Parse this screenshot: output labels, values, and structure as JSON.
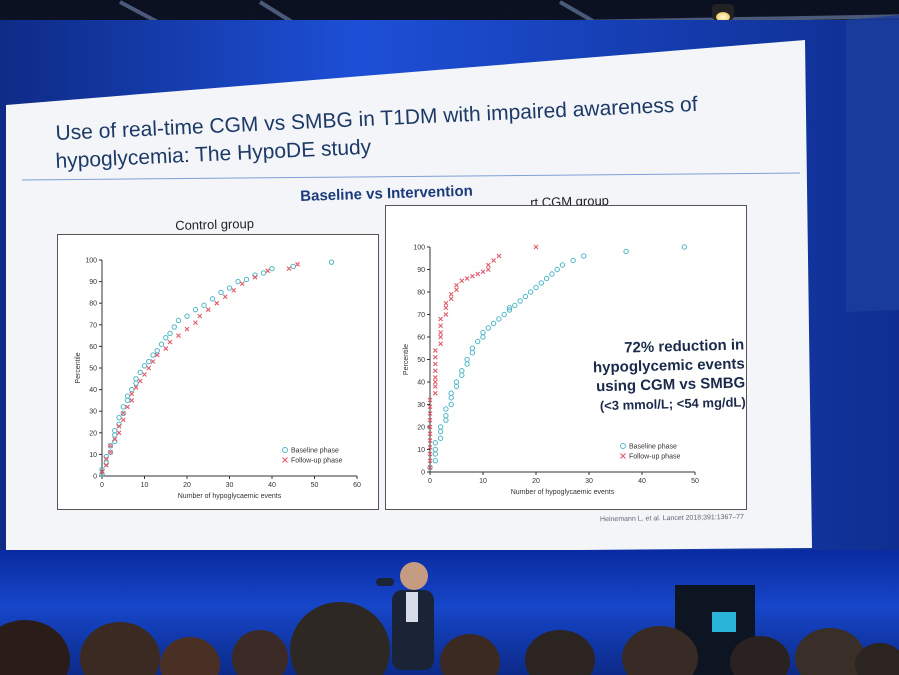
{
  "slide": {
    "title_line1": "Use of real-time CGM vs SMBG in T1DM with impaired awareness of",
    "title_line2": "hypoglycemia: The HypoDE study",
    "subtitle": "Baseline vs Intervention",
    "note_line1": "72% reduction in",
    "note_line2": "hypoglycemic events",
    "note_line3": "using CGM vs SMBG",
    "note_line4": "(<3 mmol/L; <54 mg/dL)",
    "citation": "Heinemann L, et al. Lancet 2018;391:1367–77",
    "accent_color": "#1c3b7a",
    "baseline_color": "#4fb6c6",
    "followup_color": "#e05a6a"
  },
  "chart_data": [
    {
      "type": "scatter",
      "title": "Control group",
      "xlabel": "Number of hypoglycaemic events",
      "ylabel": "Percentile",
      "xlim": [
        0,
        60
      ],
      "ylim": [
        0,
        100
      ],
      "xticks": [
        0,
        10,
        20,
        30,
        40,
        50,
        60
      ],
      "yticks": [
        0,
        10,
        20,
        30,
        40,
        50,
        60,
        70,
        80,
        90,
        100
      ],
      "legend": "bottom-right",
      "series": [
        {
          "name": "Baseline phase",
          "marker": "circle",
          "x": [
            0,
            0,
            1,
            1,
            2,
            2,
            3,
            3,
            3,
            4,
            4,
            5,
            5,
            6,
            6,
            7,
            8,
            8,
            9,
            10,
            11,
            12,
            13,
            14,
            15,
            16,
            17,
            18,
            20,
            22,
            24,
            26,
            28,
            30,
            32,
            34,
            36,
            38,
            40,
            45,
            54
          ],
          "y": [
            1,
            3,
            6,
            9,
            11,
            14,
            16,
            19,
            21,
            24,
            27,
            29,
            32,
            35,
            37,
            40,
            43,
            45,
            48,
            51,
            53,
            56,
            58,
            61,
            64,
            66,
            69,
            72,
            74,
            77,
            79,
            82,
            85,
            87,
            90,
            91,
            93,
            94,
            96,
            97,
            99
          ]
        },
        {
          "name": "Follow-up phase",
          "marker": "x",
          "x": [
            0,
            1,
            1,
            2,
            2,
            3,
            4,
            4,
            5,
            5,
            6,
            7,
            7,
            8,
            9,
            10,
            11,
            12,
            13,
            15,
            16,
            18,
            20,
            22,
            23,
            25,
            27,
            29,
            31,
            33,
            36,
            39,
            44,
            46
          ],
          "y": [
            2,
            5,
            8,
            11,
            14,
            17,
            20,
            23,
            26,
            29,
            32,
            35,
            38,
            41,
            44,
            47,
            50,
            53,
            56,
            59,
            62,
            65,
            68,
            71,
            74,
            77,
            80,
            83,
            86,
            89,
            92,
            95,
            96,
            98
          ]
        }
      ]
    },
    {
      "type": "scatter",
      "title": "rt CGM group",
      "xlabel": "Number of hypoglycaemic events",
      "ylabel": "Percentile",
      "xlim": [
        0,
        50
      ],
      "ylim": [
        0,
        100
      ],
      "xticks": [
        0,
        10,
        20,
        30,
        40,
        50
      ],
      "yticks": [
        0,
        10,
        20,
        30,
        40,
        50,
        60,
        70,
        80,
        90,
        100
      ],
      "legend": "bottom-right",
      "series": [
        {
          "name": "Baseline phase",
          "marker": "circle",
          "x": [
            0,
            1,
            1,
            1,
            1,
            2,
            2,
            2,
            3,
            3,
            3,
            4,
            4,
            4,
            5,
            5,
            6,
            6,
            7,
            7,
            8,
            8,
            9,
            10,
            10,
            11,
            12,
            13,
            14,
            15,
            15,
            16,
            17,
            18,
            19,
            20,
            21,
            22,
            23,
            24,
            25,
            27,
            29,
            37,
            48
          ],
          "y": [
            2,
            5,
            8,
            10,
            13,
            15,
            18,
            20,
            23,
            25,
            28,
            30,
            33,
            35,
            38,
            40,
            43,
            45,
            48,
            50,
            53,
            55,
            58,
            60,
            62,
            64,
            66,
            68,
            70,
            72,
            73,
            74,
            76,
            78,
            80,
            82,
            84,
            86,
            88,
            90,
            92,
            94,
            96,
            98,
            100
          ]
        },
        {
          "name": "Follow-up phase",
          "marker": "x",
          "x": [
            0,
            0,
            0,
            0,
            0,
            0,
            0,
            0,
            0,
            0,
            0,
            1,
            1,
            1,
            1,
            1,
            1,
            1,
            1,
            2,
            2,
            2,
            2,
            2,
            3,
            3,
            3,
            4,
            4,
            5,
            5,
            6,
            7,
            8,
            9,
            10,
            11,
            11,
            12,
            13,
            20
          ],
          "y": [
            2,
            5,
            8,
            11,
            14,
            17,
            20,
            23,
            26,
            29,
            32,
            35,
            38,
            40,
            42,
            45,
            48,
            51,
            54,
            57,
            60,
            62,
            65,
            68,
            70,
            73,
            75,
            77,
            79,
            81,
            83,
            85,
            86,
            87,
            88,
            89,
            90,
            92,
            94,
            96,
            100
          ]
        }
      ]
    }
  ]
}
